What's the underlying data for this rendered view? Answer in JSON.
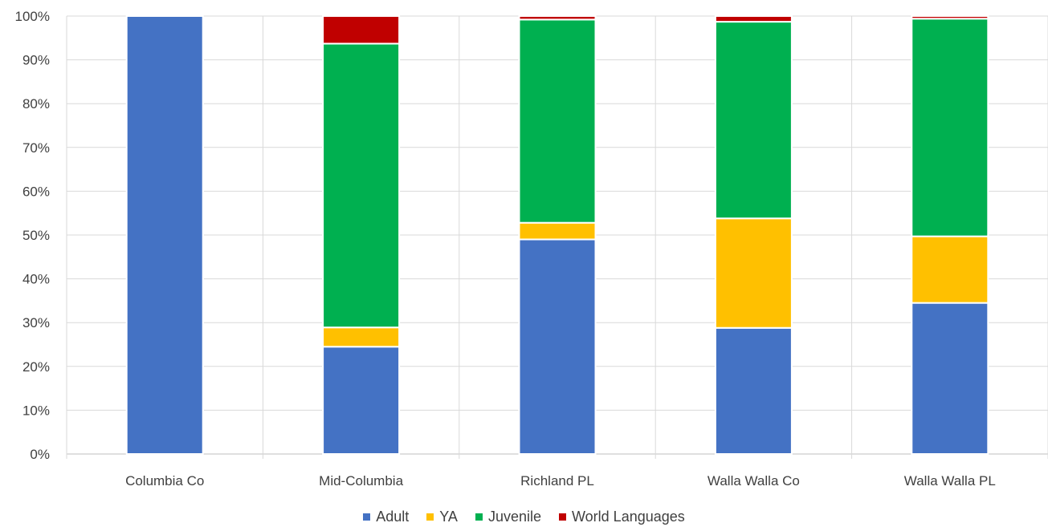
{
  "chart_data": {
    "type": "bar",
    "stacked": true,
    "categories": [
      "Columbia Co",
      "Mid-Columbia",
      "Richland PL",
      "Walla Walla Co",
      "Walla Walla PL"
    ],
    "series": [
      {
        "name": "Adult",
        "color": "#4472C4",
        "values": [
          100,
          24.5,
          49,
          28.8,
          34.5
        ]
      },
      {
        "name": "YA",
        "color": "#FFC000",
        "values": [
          0,
          4.4,
          3.8,
          25,
          15.2
        ]
      },
      {
        "name": "Juvenile",
        "color": "#00B050",
        "values": [
          0,
          64.8,
          46.4,
          44.9,
          49.7
        ]
      },
      {
        "name": "World Languages",
        "color": "#C00000",
        "values": [
          0,
          6.3,
          0.8,
          1.3,
          0.6
        ]
      }
    ],
    "yticks": [
      "0%",
      "10%",
      "20%",
      "30%",
      "40%",
      "50%",
      "60%",
      "70%",
      "80%",
      "90%",
      "100%"
    ],
    "ylim": [
      0,
      100
    ],
    "grid": true,
    "legend_position": "bottom"
  }
}
